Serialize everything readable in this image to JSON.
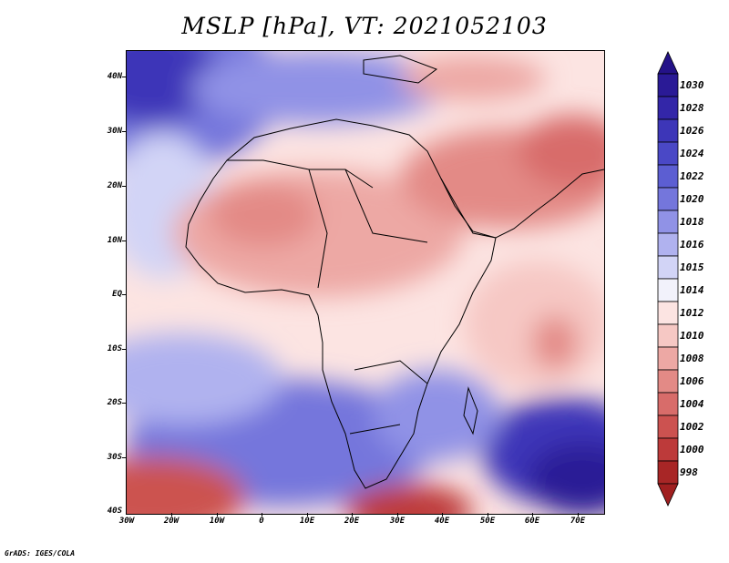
{
  "title": "MSLP [hPa], VT: 2021052103",
  "credit": "GrADS: IGES/COLA",
  "map": {
    "region": "Africa",
    "lon_range": [
      -30,
      76
    ],
    "lat_range": [
      -40,
      45
    ],
    "lat_labels": [
      {
        "value": 40,
        "label": "40N"
      },
      {
        "value": 30,
        "label": "30N"
      },
      {
        "value": 20,
        "label": "20N"
      },
      {
        "value": 10,
        "label": "10N"
      },
      {
        "value": 0,
        "label": "EQ"
      },
      {
        "value": -10,
        "label": "10S"
      },
      {
        "value": -20,
        "label": "20S"
      },
      {
        "value": -30,
        "label": "30S"
      },
      {
        "value": -40,
        "label": "40S"
      }
    ],
    "lon_labels": [
      {
        "value": -30,
        "label": "30W"
      },
      {
        "value": -20,
        "label": "20W"
      },
      {
        "value": -10,
        "label": "10W"
      },
      {
        "value": 0,
        "label": "0"
      },
      {
        "value": 10,
        "label": "10E"
      },
      {
        "value": 20,
        "label": "20E"
      },
      {
        "value": 30,
        "label": "30E"
      },
      {
        "value": 40,
        "label": "40E"
      },
      {
        "value": 50,
        "label": "50E"
      },
      {
        "value": 60,
        "label": "60E"
      },
      {
        "value": 70,
        "label": "70E"
      }
    ]
  },
  "colorbar": {
    "levels": [
      {
        "label": "1030",
        "color": "#2a1a96"
      },
      {
        "label": "1028",
        "color": "#3326a8"
      },
      {
        "label": "1026",
        "color": "#3d36b8"
      },
      {
        "label": "1024",
        "color": "#4a48c6"
      },
      {
        "label": "1022",
        "color": "#5c5ed2"
      },
      {
        "label": "1020",
        "color": "#7476dc"
      },
      {
        "label": "1018",
        "color": "#9092e6"
      },
      {
        "label": "1016",
        "color": "#b0b2ef"
      },
      {
        "label": "1015",
        "color": "#d2d4f6"
      },
      {
        "label": "1014",
        "color": "#f2f2fb"
      },
      {
        "label": "1012",
        "color": "#fce4e2"
      },
      {
        "label": "1010",
        "color": "#f6c8c4"
      },
      {
        "label": "1008",
        "color": "#eda8a4"
      },
      {
        "label": "1006",
        "color": "#e38a86"
      },
      {
        "label": "1004",
        "color": "#d86c6a"
      },
      {
        "label": "1002",
        "color": "#cc5250"
      },
      {
        "label": "1000",
        "color": "#bd3a3a"
      },
      {
        "label": "998",
        "color": "#a82626"
      }
    ],
    "top_arrow_color": "#241288",
    "bottom_arrow_color": "#a01f20"
  }
}
